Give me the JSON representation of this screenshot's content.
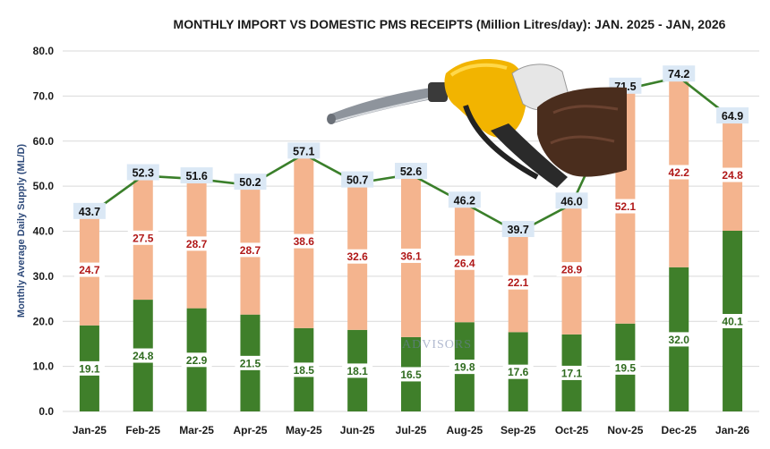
{
  "chart_data": {
    "type": "bar",
    "title": "MONTHLY IMPORT VS DOMESTIC PMS RECEIPTS (Million Litres/day): JAN. 2025 - JAN, 2026",
    "ylabel": "Monthly Average Daily Supply  (ML/D)",
    "xlabel": "",
    "ylim": [
      0,
      80
    ],
    "yticks": [
      "0.0",
      "10.0",
      "20.0",
      "30.0",
      "40.0",
      "50.0",
      "60.0",
      "70.0",
      "80.0"
    ],
    "grid": true,
    "stacked": true,
    "categories": [
      "Jan-25",
      "Feb-25",
      "Mar-25",
      "Apr-25",
      "May-25",
      "Jun-25",
      "Jul-25",
      "Aug-25",
      "Sep-25",
      "Oct-25",
      "Nov-25",
      "Dec-25",
      "Jan-26"
    ],
    "series": [
      {
        "values": [
          19.1,
          24.8,
          22.9,
          21.5,
          18.5,
          18.1,
          16.5,
          19.8,
          17.6,
          17.1,
          19.5,
          32.0,
          40.1
        ],
        "color": "#3f7f2a",
        "label_color": "#2f6b1f"
      },
      {
        "values": [
          24.7,
          27.5,
          28.7,
          28.7,
          38.6,
          32.6,
          36.1,
          26.4,
          22.1,
          28.9,
          52.1,
          42.2,
          24.8
        ],
        "color": "#f4b48e",
        "label_color": "#b01818"
      }
    ],
    "totals": {
      "values": [
        43.7,
        52.3,
        51.6,
        50.2,
        57.1,
        50.7,
        52.6,
        46.2,
        39.7,
        46.0,
        71.5,
        74.2,
        64.9
      ],
      "type": "line",
      "color": "#3a7f2a",
      "label_bg": "#dbe8f5"
    },
    "watermark": "ADVISORS"
  }
}
